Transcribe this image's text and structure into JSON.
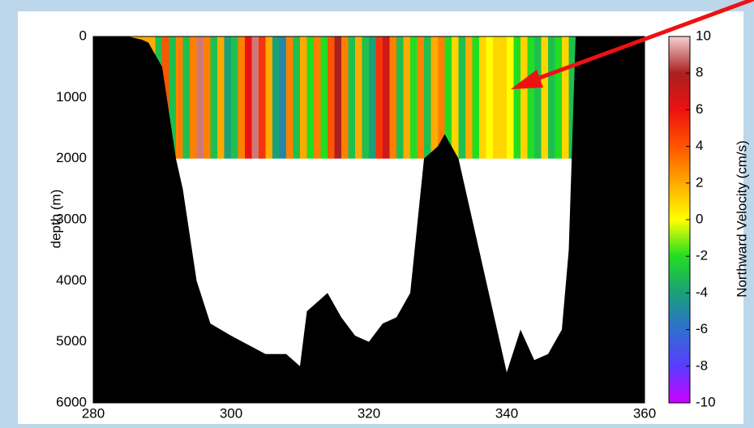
{
  "chart_data": {
    "type": "section",
    "xlim": [
      280,
      360
    ],
    "xticks": [
      280,
      300,
      320,
      340,
      360
    ],
    "ylim": [
      6000,
      0
    ],
    "yticks": [
      0,
      1000,
      2000,
      3000,
      4000,
      5000,
      6000
    ],
    "y_label": "depth (m)",
    "colorbar_label": "Northward Velocity (cm/s)",
    "clim": [
      -10,
      10
    ],
    "cticks": [
      -10,
      -8,
      -6,
      -4,
      -2,
      0,
      2,
      4,
      6,
      8,
      10
    ],
    "colorscale": [
      "#cc00ff",
      "#5a3cff",
      "#2e6fd0",
      "#1aa07a",
      "#22dd22",
      "#ffff00",
      "#ffaa00",
      "#ff5500",
      "#ee1111",
      "#aa2020",
      "#f4d0d0"
    ],
    "heatmap": {
      "depth_range": [
        0,
        2000
      ],
      "x": [
        285,
        286,
        287,
        288,
        289,
        290,
        291,
        292,
        293,
        294,
        295,
        296,
        297,
        298,
        299,
        300,
        301,
        302,
        303,
        304,
        305,
        306,
        307,
        308,
        309,
        310,
        311,
        312,
        313,
        314,
        315,
        316,
        317,
        318,
        319,
        320,
        321,
        322,
        323,
        324,
        325,
        326,
        327,
        328,
        329,
        330,
        331,
        332,
        333,
        334,
        335,
        336,
        337,
        338,
        339,
        340,
        341,
        342,
        343,
        344,
        345,
        346,
        347,
        348,
        349
      ],
      "values": [
        2,
        2,
        2,
        2,
        -3,
        4,
        -3,
        3,
        -3,
        3,
        9,
        3,
        -3,
        2,
        -4,
        -3,
        3,
        6,
        9,
        5,
        2,
        -4,
        -5,
        3,
        -3,
        2,
        -2,
        3,
        -2,
        4,
        8,
        3,
        -3,
        2,
        -3,
        -4,
        5,
        7,
        3,
        -3,
        2,
        -2,
        3,
        -3,
        2,
        3,
        -2,
        1,
        -3,
        2,
        -2,
        1,
        0,
        1,
        1,
        0,
        -2,
        1,
        -2,
        -3,
        1,
        -3,
        -2,
        1,
        -3
      ]
    },
    "bathymetry": {
      "color": "#000000",
      "x": [
        280,
        285,
        287,
        288,
        290,
        292,
        293,
        295,
        297,
        300,
        305,
        308,
        309,
        310,
        311,
        312,
        314,
        316,
        318,
        320,
        322,
        324,
        326,
        328,
        330,
        331,
        333,
        335,
        337,
        339,
        340,
        342,
        344,
        346,
        348,
        349,
        350,
        360
      ],
      "values": [
        0,
        0,
        50,
        100,
        500,
        2000,
        2500,
        4000,
        4700,
        4900,
        5200,
        5200,
        5300,
        5400,
        4500,
        4400,
        4200,
        4600,
        4900,
        5000,
        4700,
        4600,
        4200,
        2000,
        1800,
        1600,
        2000,
        3000,
        4000,
        5000,
        5500,
        4800,
        5300,
        5200,
        4800,
        3500,
        0,
        0
      ]
    }
  }
}
